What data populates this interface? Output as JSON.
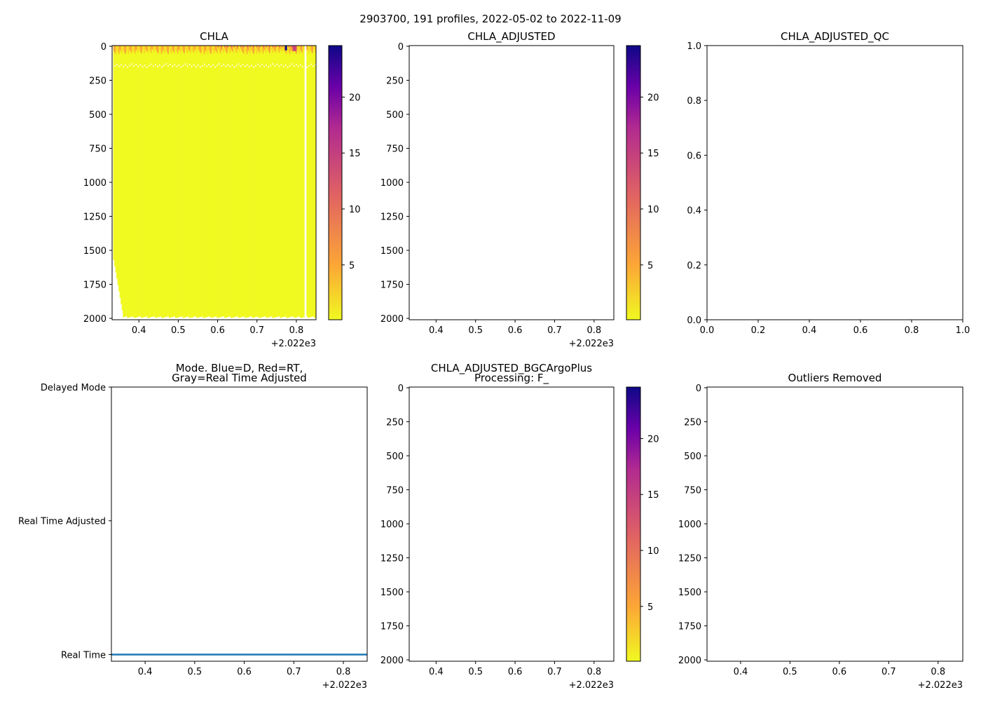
{
  "suptitle": "2903700, 191 profiles, 2022-05-02 to 2022-11-09",
  "colors": {
    "heat_base": "#f0f921",
    "mode_line": "#1f77b4"
  },
  "chart_data": [
    {
      "id": "chla",
      "type": "heatmap",
      "title": "CHLA",
      "xlim": [
        0.332,
        0.85
      ],
      "ylim": [
        2010,
        -5
      ],
      "xticks": [
        0.4,
        0.5,
        0.6,
        0.7,
        0.8
      ],
      "xtick_labels": [
        "0.4",
        "0.5",
        "0.6",
        "0.7",
        "0.8"
      ],
      "x_offset": "+2.022e3",
      "yticks": [
        0,
        250,
        500,
        750,
        1000,
        1250,
        1500,
        1750,
        2000
      ],
      "ytick_labels": [
        "0",
        "250",
        "500",
        "750",
        "1000",
        "1250",
        "1500",
        "1750",
        "2000"
      ],
      "colorbar": {
        "range": [
          0.1,
          24.6
        ],
        "ticks": [
          5,
          10,
          15,
          20
        ],
        "tick_labels": [
          "5",
          "10",
          "15",
          "20"
        ],
        "cmap": "plasma_r"
      },
      "surface_values_max": 24,
      "deep_value": 0.2,
      "gap_x": 0.822
    },
    {
      "id": "chla_adjusted",
      "type": "heatmap",
      "title": "CHLA_ADJUSTED",
      "xlim": [
        0.332,
        0.85
      ],
      "ylim": [
        2010,
        -5
      ],
      "xticks": [
        0.4,
        0.5,
        0.6,
        0.7,
        0.8
      ],
      "xtick_labels": [
        "0.4",
        "0.5",
        "0.6",
        "0.7",
        "0.8"
      ],
      "x_offset": "+2.022e3",
      "yticks": [
        0,
        250,
        500,
        750,
        1000,
        1250,
        1500,
        1750,
        2000
      ],
      "ytick_labels": [
        "0",
        "250",
        "500",
        "750",
        "1000",
        "1250",
        "1500",
        "1750",
        "2000"
      ],
      "colorbar": {
        "range": [
          0.1,
          24.6
        ],
        "ticks": [
          5,
          10,
          15,
          20
        ],
        "tick_labels": [
          "5",
          "10",
          "15",
          "20"
        ],
        "cmap": "plasma_r"
      }
    },
    {
      "id": "chla_adjusted_qc",
      "type": "scatter",
      "title": "CHLA_ADJUSTED_QC",
      "xlim": [
        0,
        1
      ],
      "ylim": [
        0,
        1
      ],
      "xticks": [
        0,
        0.2,
        0.4,
        0.6,
        0.8,
        1.0
      ],
      "xtick_labels": [
        "0.0",
        "0.2",
        "0.4",
        "0.6",
        "0.8",
        "1.0"
      ],
      "yticks": [
        0,
        0.2,
        0.4,
        0.6,
        0.8,
        1.0
      ],
      "ytick_labels": [
        "0.0",
        "0.2",
        "0.4",
        "0.6",
        "0.8",
        "1.0"
      ]
    },
    {
      "id": "mode",
      "type": "line",
      "title": "Mode. Blue=D, Red=RT,",
      "title2": "Gray=Real Time Adjusted",
      "xlim": [
        0.332,
        0.848
      ],
      "ylim": [
        -0.05,
        2
      ],
      "xticks": [
        0.4,
        0.5,
        0.6,
        0.7,
        0.8
      ],
      "xtick_labels": [
        "0.4",
        "0.5",
        "0.6",
        "0.7",
        "0.8"
      ],
      "x_offset": "+2.022e3",
      "yticks": [
        0,
        1,
        2
      ],
      "ytick_labels": [
        "Real Time",
        "Real Time Adjusted",
        "Delayed Mode"
      ],
      "series": [
        {
          "name": "mode",
          "x_range": [
            0.332,
            0.848
          ],
          "value": 0
        }
      ]
    },
    {
      "id": "bgcargoplus",
      "type": "heatmap",
      "title": "CHLA_ADJUSTED_BGCArgoPlus",
      "title2": "Processing: F_",
      "xlim": [
        0.332,
        0.85
      ],
      "ylim": [
        2010,
        -5
      ],
      "xticks": [
        0.4,
        0.5,
        0.6,
        0.7,
        0.8
      ],
      "xtick_labels": [
        "0.4",
        "0.5",
        "0.6",
        "0.7",
        "0.8"
      ],
      "x_offset": "+2.022e3",
      "yticks": [
        0,
        250,
        500,
        750,
        1000,
        1250,
        1500,
        1750,
        2000
      ],
      "ytick_labels": [
        "0",
        "250",
        "500",
        "750",
        "1000",
        "1250",
        "1500",
        "1750",
        "2000"
      ],
      "colorbar": {
        "range": [
          0.1,
          24.6
        ],
        "ticks": [
          5,
          10,
          15,
          20
        ],
        "tick_labels": [
          "5",
          "10",
          "15",
          "20"
        ],
        "cmap": "plasma_r"
      }
    },
    {
      "id": "outliers",
      "type": "heatmap",
      "title": "Outliers Removed",
      "xlim": [
        0.332,
        0.85
      ],
      "ylim": [
        2010,
        -5
      ],
      "xticks": [
        0.4,
        0.5,
        0.6,
        0.7,
        0.8
      ],
      "xtick_labels": [
        "0.4",
        "0.5",
        "0.6",
        "0.7",
        "0.8"
      ],
      "x_offset": "+2.022e3",
      "yticks": [
        0,
        250,
        500,
        750,
        1000,
        1250,
        1500,
        1750,
        2000
      ],
      "ytick_labels": [
        "0",
        "250",
        "500",
        "750",
        "1000",
        "1250",
        "1500",
        "1750",
        "2000"
      ]
    }
  ]
}
